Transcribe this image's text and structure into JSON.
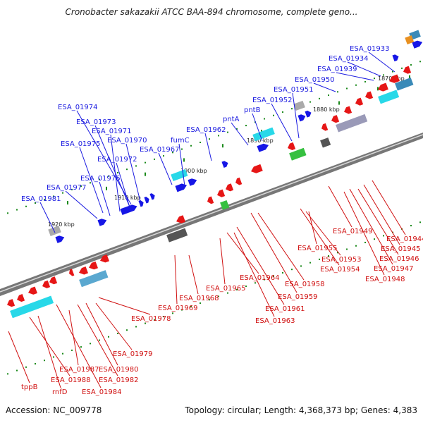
{
  "title": "Cronobacter sakazakii ATCC BAA-894 chromosome, complete geno...",
  "footer": {
    "accession": "Accession: NC_009778",
    "topology": "Topology: circular; Length: 4,368,373 bp; Genes: 4,383"
  },
  "colors": {
    "forward_label": "#1a1ae0",
    "reverse_label": "#d01010",
    "forward_gene": "#1616e6",
    "reverse_gene": "#e61616",
    "axis": "#777777",
    "tick": "#1c8a1c"
  },
  "scale_labels": [
    "1870 kbp",
    "1880 kbp",
    "1890 kbp",
    "1900 kbp",
    "1910 kbp",
    "1920 kbp"
  ],
  "top_labels": [
    "ESA_01933",
    "ESA_01934",
    "ESA_01939",
    "ESA_01950",
    "ESA_01951",
    "ESA_01952",
    "pntB",
    "pntA",
    "ESA_01962",
    "fumC",
    "ESA_01967",
    "ESA_01974",
    "ESA_01973",
    "ESA_01971",
    "ESA_01970",
    "ESA_01975",
    "ESA_01972",
    "ESA_01976",
    "ESA_01977",
    "ESA_01981"
  ],
  "bottom_labels": [
    "ESA_01944",
    "ESA_01945",
    "ESA_01946",
    "ESA_01947",
    "ESA_01948",
    "ESA_01949",
    "ESA_01955",
    "ESA_01953",
    "ESA_01954",
    "ESA_01958",
    "ESA_01959",
    "ESA_01961",
    "ESA_01963",
    "ESA_01964",
    "ESA_01965",
    "ESA_01968",
    "ESA_01969",
    "ESA_01978",
    "ESA_01979",
    "ESA_01980",
    "ESA_01987",
    "ESA_01982",
    "ESA_01988",
    "ESA_01984",
    "rnfD",
    "tppB"
  ]
}
